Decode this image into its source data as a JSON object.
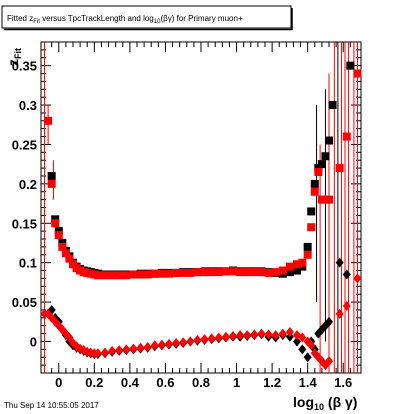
{
  "title": {
    "part1": "Fitted  z",
    "sub1": "Fit",
    "part2": " versus TpcTrackLength and log",
    "sub2": "10",
    "part3": "(βγ) for Primary muon+"
  },
  "date_stamp": "Thu Sep 14 10:55:05 2017",
  "chart_data": {
    "type": "scatter",
    "title": "Fitted z_Fit versus TpcTrackLength and log10(βγ) for Primary muon+",
    "xlabel": {
      "main": "log",
      "sub": "10",
      "rest": " (β γ)"
    },
    "ylabel": {
      "main": "z",
      "sub": "Fit"
    },
    "xlim": [
      -0.1,
      1.7
    ],
    "ylim": [
      -0.04,
      0.38
    ],
    "x_ticks": [
      0,
      0.2,
      0.4,
      0.6,
      0.8,
      1,
      1.2,
      1.4,
      1.6
    ],
    "x_tick_labels": [
      "0",
      "0.2",
      "0.4",
      "0.6",
      "0.8",
      "1",
      "1.2",
      "1.4",
      "1.6"
    ],
    "y_ticks": [
      0,
      0.05,
      0.1,
      0.15,
      0.2,
      0.25,
      0.3,
      0.35
    ],
    "y_tick_labels": [
      "0",
      "0.05",
      "0.1",
      "0.15",
      "0.2",
      "0.25",
      "0.3",
      "0.35"
    ],
    "colors": {
      "black": "#000000",
      "red": "#ff0000"
    },
    "series": [
      {
        "marker": "square",
        "color": "#000000",
        "points": [
          [
            -0.04,
            0.21
          ],
          [
            -0.02,
            0.155
          ],
          [
            0,
            0.14
          ],
          [
            0.02,
            0.125
          ],
          [
            0.04,
            0.115
          ],
          [
            0.06,
            0.108
          ],
          [
            0.08,
            0.1
          ],
          [
            0.1,
            0.095
          ],
          [
            0.12,
            0.092
          ],
          [
            0.14,
            0.09
          ],
          [
            0.16,
            0.089
          ],
          [
            0.18,
            0.088
          ],
          [
            0.2,
            0.087
          ],
          [
            0.22,
            0.086
          ],
          [
            0.26,
            0.085
          ],
          [
            0.3,
            0.085
          ],
          [
            0.34,
            0.085
          ],
          [
            0.38,
            0.085
          ],
          [
            0.42,
            0.085
          ],
          [
            0.46,
            0.086
          ],
          [
            0.5,
            0.086
          ],
          [
            0.54,
            0.086
          ],
          [
            0.58,
            0.087
          ],
          [
            0.62,
            0.087
          ],
          [
            0.66,
            0.087
          ],
          [
            0.7,
            0.088
          ],
          [
            0.74,
            0.088
          ],
          [
            0.78,
            0.088
          ],
          [
            0.82,
            0.089
          ],
          [
            0.86,
            0.089
          ],
          [
            0.9,
            0.089
          ],
          [
            0.94,
            0.089
          ],
          [
            0.98,
            0.09
          ],
          [
            1.02,
            0.089
          ],
          [
            1.06,
            0.089
          ],
          [
            1.1,
            0.089
          ],
          [
            1.14,
            0.089
          ],
          [
            1.18,
            0.088
          ],
          [
            1.22,
            0.087
          ],
          [
            1.26,
            0.086
          ],
          [
            1.3,
            0.088
          ],
          [
            1.34,
            0.09
          ],
          [
            1.37,
            0.095
          ],
          [
            1.4,
            0.12
          ],
          [
            1.42,
            0.165
          ],
          [
            1.44,
            0.2
          ],
          [
            1.46,
            0.22
          ],
          [
            1.48,
            0.225
          ],
          [
            1.5,
            0.235
          ],
          [
            1.52,
            0.255
          ],
          [
            1.54,
            0.3
          ],
          [
            1.64,
            0.35
          ]
        ]
      },
      {
        "marker": "square",
        "color": "#ff0000",
        "points": [
          [
            -0.06,
            0.28
          ],
          [
            -0.04,
            0.2
          ],
          [
            -0.02,
            0.15
          ],
          [
            0,
            0.135
          ],
          [
            0.02,
            0.12
          ],
          [
            0.04,
            0.112
          ],
          [
            0.06,
            0.105
          ],
          [
            0.08,
            0.098
          ],
          [
            0.1,
            0.093
          ],
          [
            0.12,
            0.09
          ],
          [
            0.14,
            0.088
          ],
          [
            0.16,
            0.087
          ],
          [
            0.18,
            0.086
          ],
          [
            0.2,
            0.085
          ],
          [
            0.22,
            0.084
          ],
          [
            0.26,
            0.084
          ],
          [
            0.3,
            0.084
          ],
          [
            0.34,
            0.084
          ],
          [
            0.38,
            0.084
          ],
          [
            0.42,
            0.085
          ],
          [
            0.46,
            0.085
          ],
          [
            0.5,
            0.085
          ],
          [
            0.54,
            0.086
          ],
          [
            0.58,
            0.086
          ],
          [
            0.62,
            0.086
          ],
          [
            0.66,
            0.087
          ],
          [
            0.7,
            0.087
          ],
          [
            0.74,
            0.087
          ],
          [
            0.78,
            0.088
          ],
          [
            0.82,
            0.088
          ],
          [
            0.86,
            0.088
          ],
          [
            0.9,
            0.088
          ],
          [
            0.94,
            0.089
          ],
          [
            0.98,
            0.089
          ],
          [
            1.02,
            0.088
          ],
          [
            1.06,
            0.088
          ],
          [
            1.1,
            0.088
          ],
          [
            1.14,
            0.088
          ],
          [
            1.18,
            0.087
          ],
          [
            1.22,
            0.088
          ],
          [
            1.26,
            0.09
          ],
          [
            1.3,
            0.095
          ],
          [
            1.34,
            0.098
          ],
          [
            1.37,
            0.1
          ],
          [
            1.4,
            0.11
          ],
          [
            1.42,
            0.145
          ],
          [
            1.44,
            0.19
          ],
          [
            1.46,
            0.215
          ],
          [
            1.48,
            0.18
          ],
          [
            1.5,
            0.18
          ],
          [
            1.52,
            0.18
          ],
          [
            1.58,
            0.22
          ],
          [
            1.62,
            0.26
          ],
          [
            1.68,
            0.34
          ]
        ]
      },
      {
        "marker": "diamond",
        "color": "#000000",
        "points": [
          [
            -0.06,
            0.035
          ],
          [
            -0.04,
            0.04
          ],
          [
            -0.02,
            0.03
          ],
          [
            0,
            0.025
          ],
          [
            0.02,
            0.015
          ],
          [
            0.04,
            0.008
          ],
          [
            0.06,
            0.0
          ],
          [
            0.08,
            -0.005
          ],
          [
            0.1,
            -0.008
          ],
          [
            0.12,
            -0.01
          ],
          [
            0.14,
            -0.012
          ],
          [
            0.16,
            -0.014
          ],
          [
            0.18,
            -0.015
          ],
          [
            0.2,
            -0.016
          ],
          [
            0.22,
            -0.016
          ],
          [
            0.26,
            -0.015
          ],
          [
            0.3,
            -0.013
          ],
          [
            0.34,
            -0.012
          ],
          [
            0.38,
            -0.011
          ],
          [
            0.42,
            -0.01
          ],
          [
            0.46,
            -0.009
          ],
          [
            0.5,
            -0.008
          ],
          [
            0.54,
            -0.006
          ],
          [
            0.58,
            -0.005
          ],
          [
            0.62,
            -0.004
          ],
          [
            0.66,
            -0.003
          ],
          [
            0.7,
            -0.002
          ],
          [
            0.74,
            0.0
          ],
          [
            0.78,
            0.001
          ],
          [
            0.82,
            0.002
          ],
          [
            0.86,
            0.003
          ],
          [
            0.9,
            0.004
          ],
          [
            0.94,
            0.005
          ],
          [
            0.98,
            0.006
          ],
          [
            1.02,
            0.006
          ],
          [
            1.06,
            0.007
          ],
          [
            1.1,
            0.008
          ],
          [
            1.14,
            0.009
          ],
          [
            1.18,
            0.006
          ],
          [
            1.22,
            0.005
          ],
          [
            1.26,
            0.008
          ],
          [
            1.3,
            0.006
          ],
          [
            1.34,
            0.0
          ],
          [
            1.37,
            -0.01
          ],
          [
            1.4,
            -0.02
          ],
          [
            1.42,
            0.0
          ],
          [
            1.44,
            -0.01
          ],
          [
            1.46,
            0.01
          ],
          [
            1.48,
            0.015
          ],
          [
            1.5,
            0.02
          ],
          [
            1.52,
            0.025
          ],
          [
            1.58,
            0.1
          ],
          [
            1.62,
            0.085
          ]
        ]
      },
      {
        "marker": "diamond",
        "color": "#ff0000",
        "points": [
          [
            -0.08,
            0.035
          ],
          [
            -0.06,
            0.035
          ],
          [
            -0.04,
            0.03
          ],
          [
            -0.02,
            0.025
          ],
          [
            0,
            0.02
          ],
          [
            0.02,
            0.015
          ],
          [
            0.04,
            0.01
          ],
          [
            0.06,
            0.005
          ],
          [
            0.08,
            -0.002
          ],
          [
            0.1,
            -0.006
          ],
          [
            0.12,
            -0.009
          ],
          [
            0.14,
            -0.011
          ],
          [
            0.16,
            -0.013
          ],
          [
            0.18,
            -0.014
          ],
          [
            0.2,
            -0.015
          ],
          [
            0.22,
            -0.015
          ],
          [
            0.26,
            -0.014
          ],
          [
            0.3,
            -0.012
          ],
          [
            0.34,
            -0.011
          ],
          [
            0.38,
            -0.01
          ],
          [
            0.42,
            -0.009
          ],
          [
            0.46,
            -0.008
          ],
          [
            0.5,
            -0.007
          ],
          [
            0.54,
            -0.005
          ],
          [
            0.58,
            -0.004
          ],
          [
            0.62,
            -0.003
          ],
          [
            0.66,
            -0.002
          ],
          [
            0.7,
            -0.001
          ],
          [
            0.74,
            0.0
          ],
          [
            0.78,
            0.002
          ],
          [
            0.82,
            0.003
          ],
          [
            0.86,
            0.004
          ],
          [
            0.9,
            0.005
          ],
          [
            0.94,
            0.006
          ],
          [
            0.98,
            0.007
          ],
          [
            1.02,
            0.008
          ],
          [
            1.06,
            0.008
          ],
          [
            1.1,
            0.009
          ],
          [
            1.14,
            0.01
          ],
          [
            1.18,
            0.009
          ],
          [
            1.22,
            0.008
          ],
          [
            1.26,
            0.01
          ],
          [
            1.3,
            0.012
          ],
          [
            1.34,
            0.008
          ],
          [
            1.37,
            0.005
          ],
          [
            1.4,
            0.0
          ],
          [
            1.42,
            -0.005
          ],
          [
            1.44,
            -0.015
          ],
          [
            1.46,
            -0.02
          ],
          [
            1.48,
            -0.025
          ],
          [
            1.5,
            -0.03
          ],
          [
            1.52,
            -0.025
          ],
          [
            1.58,
            0.035
          ],
          [
            1.62,
            0.045
          ],
          [
            1.68,
            0.08
          ]
        ]
      }
    ],
    "error_bars": [
      {
        "x": -0.08,
        "lo": -0.04,
        "hi": 0.38,
        "color": "#ff0000"
      },
      {
        "x": -0.06,
        "lo": 0.25,
        "hi": 0.3,
        "color": "#ff0000"
      },
      {
        "x": -0.03,
        "lo": 0.18,
        "hi": 0.23,
        "color": "#ff0000"
      },
      {
        "x": 1.45,
        "lo": 0.05,
        "hi": 0.3,
        "color": "#000000"
      },
      {
        "x": 1.47,
        "lo": -0.04,
        "hi": 0.25,
        "color": "#ff0000"
      },
      {
        "x": 1.5,
        "lo": 0.0,
        "hi": 0.32,
        "color": "#000000"
      },
      {
        "x": 1.52,
        "lo": -0.04,
        "hi": 0.34,
        "color": "#ff0000"
      },
      {
        "x": 1.55,
        "lo": -0.04,
        "hi": 0.38,
        "color": "#ff0000"
      },
      {
        "x": 1.57,
        "lo": -0.04,
        "hi": 0.38,
        "color": "#000000"
      },
      {
        "x": 1.59,
        "lo": -0.04,
        "hi": 0.38,
        "color": "#ff0000"
      },
      {
        "x": 1.61,
        "lo": -0.04,
        "hi": 0.38,
        "color": "#ff0000"
      },
      {
        "x": 1.63,
        "lo": -0.04,
        "hi": 0.38,
        "color": "#ff0000"
      },
      {
        "x": 1.66,
        "lo": -0.04,
        "hi": 0.38,
        "color": "#ff0000"
      },
      {
        "x": 1.68,
        "lo": -0.04,
        "hi": 0.38,
        "color": "#ff0000"
      }
    ]
  }
}
